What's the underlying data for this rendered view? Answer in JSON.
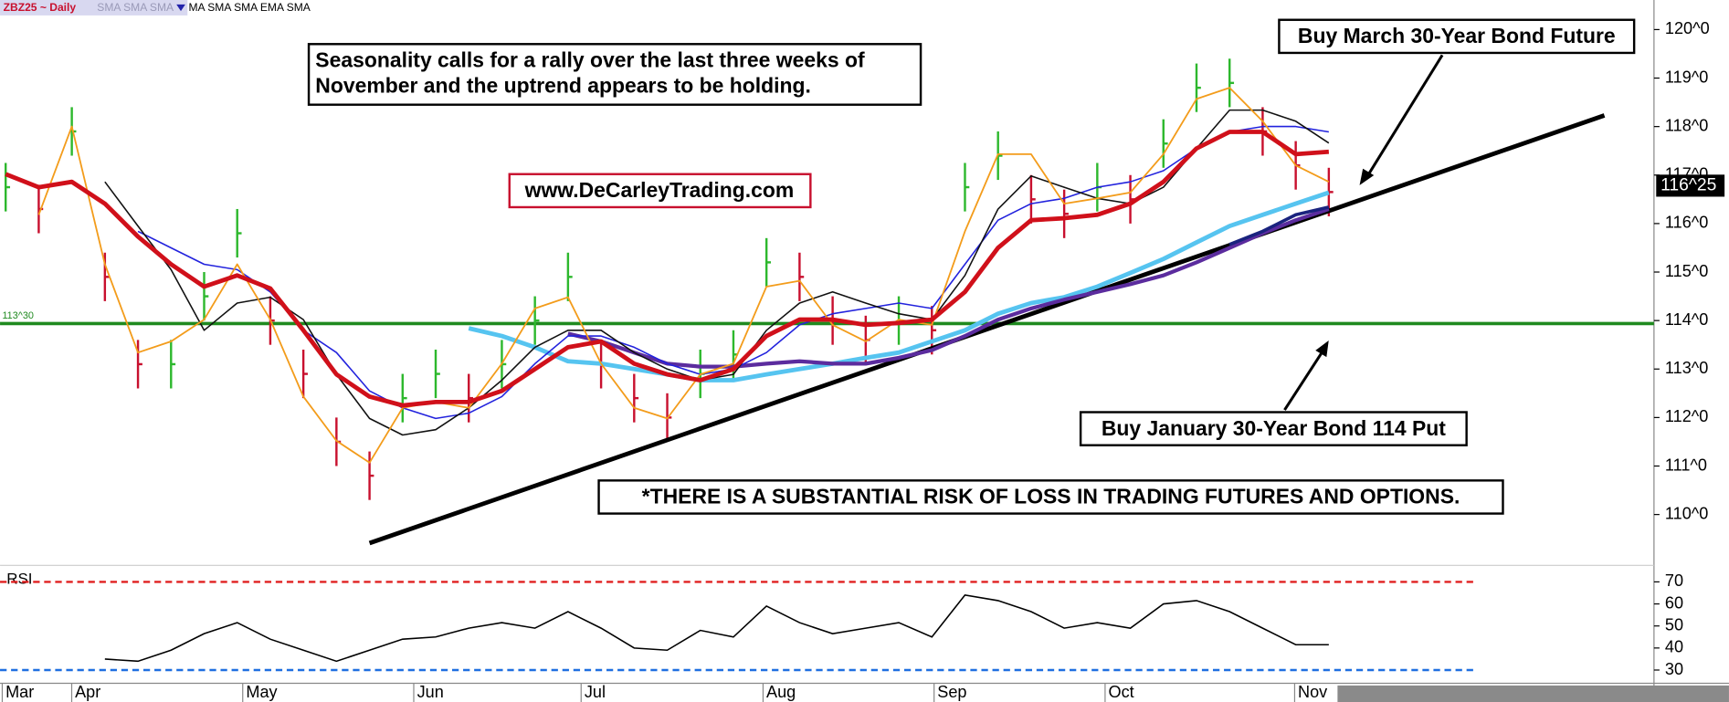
{
  "chart_data": {
    "type": "ohlc",
    "legend_symbol": "ZBZ25 ~ Daily",
    "legend_faded": "SMA SMA SMA",
    "legend_rest": "MA SMA SMA EMA SMA",
    "x": [
      0,
      1,
      2,
      3,
      4,
      5,
      6,
      7,
      8,
      9,
      10,
      11,
      12,
      13,
      14,
      15,
      16,
      17,
      18,
      19,
      20,
      21,
      22,
      23,
      24,
      25,
      26,
      27,
      28,
      29,
      30,
      31,
      32,
      33,
      34,
      35,
      36,
      37,
      38,
      39,
      40
    ],
    "xlim": [
      -0.17,
      49.83
    ],
    "xticks": [
      {
        "value": -0.17,
        "label": "Mar"
      },
      {
        "value": 1.93,
        "label": "Apr"
      },
      {
        "value": 7.1,
        "label": "May"
      },
      {
        "value": 12.27,
        "label": "Jun"
      },
      {
        "value": 17.33,
        "label": "Jul"
      },
      {
        "value": 22.83,
        "label": "Aug"
      },
      {
        "value": 28,
        "label": "Sep"
      },
      {
        "value": 33.17,
        "label": "Oct"
      },
      {
        "value": 38.9,
        "label": "Nov"
      }
    ],
    "ylim": [
      109.02,
      120.61
    ],
    "yticks": [
      {
        "value": 120,
        "label": "120^0"
      },
      {
        "value": 119,
        "label": "119^0"
      },
      {
        "value": 118,
        "label": "118^0"
      },
      {
        "value": 117,
        "label": "117^0"
      },
      {
        "value": 116,
        "label": "116^0"
      },
      {
        "value": 115,
        "label": "115^0"
      },
      {
        "value": 114,
        "label": "114^0"
      },
      {
        "value": 113,
        "label": "113^0"
      },
      {
        "value": 112,
        "label": "112^0"
      },
      {
        "value": 111,
        "label": "111^0"
      },
      {
        "value": 110,
        "label": "110^0"
      }
    ],
    "high": [
      117.25,
      116.8,
      118.4,
      115.4,
      113.6,
      113.6,
      115.0,
      116.3,
      114.5,
      113.4,
      112.0,
      111.3,
      112.9,
      113.4,
      112.9,
      113.6,
      114.5,
      115.4,
      113.6,
      112.9,
      112.5,
      113.4,
      113.8,
      115.7,
      115.4,
      114.5,
      114.1,
      114.5,
      114.3,
      117.25,
      117.9,
      117.0,
      116.7,
      117.25,
      117.0,
      118.15,
      119.3,
      119.4,
      118.4,
      117.7,
      117.15
    ],
    "low": [
      116.25,
      115.8,
      117.4,
      114.4,
      112.6,
      112.6,
      114.0,
      115.3,
      113.5,
      112.4,
      111.0,
      110.3,
      111.9,
      112.4,
      111.9,
      112.6,
      113.5,
      114.4,
      112.6,
      111.9,
      111.5,
      112.4,
      112.8,
      114.7,
      114.4,
      113.5,
      113.1,
      113.5,
      113.3,
      116.25,
      116.9,
      116.0,
      115.7,
      116.25,
      116.0,
      117.15,
      118.3,
      118.4,
      117.4,
      116.7,
      116.15
    ],
    "close": [
      116.75,
      116.3,
      117.9,
      114.9,
      113.1,
      113.1,
      114.5,
      115.8,
      114.0,
      112.9,
      111.5,
      110.8,
      112.4,
      112.9,
      112.4,
      113.1,
      114.0,
      114.9,
      113.1,
      112.4,
      112.0,
      112.9,
      113.3,
      115.2,
      114.9,
      114.0,
      113.6,
      114.0,
      113.8,
      116.75,
      117.4,
      116.5,
      116.2,
      116.75,
      116.5,
      117.65,
      118.8,
      118.9,
      117.9,
      117.2,
      116.65
    ],
    "up_color": "#2db82d",
    "down_color": "#c8102e",
    "series": [
      {
        "color": "#56c4f0",
        "width": 4,
        "values": [
          null,
          null,
          null,
          null,
          null,
          null,
          null,
          null,
          null,
          null,
          null,
          null,
          null,
          null,
          113.84,
          113.68,
          113.45,
          113.16,
          113.11,
          113.0,
          112.89,
          112.77,
          112.77,
          112.89,
          113.0,
          113.11,
          113.23,
          113.34,
          113.57,
          113.8,
          114.14,
          114.36,
          114.48,
          114.7,
          114.98,
          115.27,
          115.61,
          115.95,
          116.18,
          116.41,
          116.64
        ]
      },
      {
        "color": "#5b2c9e",
        "width": 3.5,
        "values": [
          null,
          null,
          null,
          null,
          null,
          null,
          null,
          null,
          null,
          null,
          null,
          null,
          null,
          null,
          null,
          null,
          null,
          113.73,
          113.57,
          113.34,
          113.11,
          113.05,
          113.05,
          113.11,
          113.16,
          113.11,
          113.11,
          113.23,
          113.39,
          113.68,
          114.02,
          114.25,
          114.43,
          114.59,
          114.75,
          114.93,
          115.2,
          115.5,
          115.8,
          116.07,
          116.3
        ]
      },
      {
        "color": "#1a237e",
        "width": 3,
        "values": [
          null,
          null,
          null,
          null,
          null,
          null,
          null,
          null,
          null,
          null,
          null,
          null,
          null,
          null,
          null,
          null,
          null,
          null,
          null,
          null,
          null,
          null,
          null,
          null,
          null,
          null,
          null,
          null,
          null,
          null,
          null,
          null,
          null,
          null,
          null,
          null,
          null,
          115.57,
          115.84,
          116.18,
          116.34
        ]
      },
      {
        "color": "#2222dd",
        "width": 1.3,
        "values": [
          null,
          null,
          null,
          null,
          115.84,
          115.5,
          115.16,
          115.05,
          114.59,
          113.8,
          113.34,
          112.55,
          112.2,
          111.98,
          112.09,
          112.43,
          113.11,
          113.68,
          113.68,
          113.45,
          113.11,
          112.89,
          113.0,
          113.34,
          113.91,
          114.14,
          114.25,
          114.36,
          114.25,
          115.16,
          116.07,
          116.41,
          116.52,
          116.75,
          116.86,
          117.09,
          117.55,
          117.89,
          118.0,
          118.0,
          117.89
        ]
      },
      {
        "color": "#111111",
        "width": 1.3,
        "values": [
          null,
          null,
          null,
          116.86,
          115.95,
          115.05,
          113.8,
          114.36,
          114.48,
          114.02,
          112.89,
          111.98,
          111.64,
          111.75,
          112.2,
          112.77,
          113.45,
          113.8,
          113.8,
          113.34,
          113.0,
          112.77,
          112.89,
          113.8,
          114.36,
          114.59,
          114.36,
          114.14,
          114.02,
          114.93,
          116.3,
          116.98,
          116.75,
          116.52,
          116.41,
          116.75,
          117.55,
          118.34,
          118.34,
          118.11,
          117.66
        ]
      },
      {
        "color": "#f39c1b",
        "width": 1.5,
        "values": [
          null,
          116.18,
          118.0,
          115.16,
          113.34,
          113.57,
          114.02,
          115.16,
          114.02,
          112.43,
          111.52,
          111.07,
          112.2,
          112.32,
          112.2,
          113.11,
          114.25,
          114.48,
          113.11,
          112.2,
          111.98,
          112.89,
          113.11,
          114.7,
          114.82,
          113.91,
          113.57,
          114.02,
          113.91,
          115.84,
          117.43,
          117.43,
          116.41,
          116.52,
          116.64,
          117.43,
          118.57,
          118.8,
          118.11,
          117.2,
          116.86
        ]
      },
      {
        "color": "#d0101a",
        "width": 4,
        "values": [
          117.02,
          116.75,
          116.86,
          116.41,
          115.73,
          115.16,
          114.7,
          114.93,
          114.66,
          113.8,
          112.89,
          112.43,
          112.25,
          112.32,
          112.32,
          112.55,
          113.0,
          113.45,
          113.57,
          113.11,
          112.89,
          112.77,
          113.0,
          113.68,
          114.02,
          114.02,
          113.91,
          113.95,
          114.02,
          114.59,
          115.5,
          116.07,
          116.11,
          116.18,
          116.41,
          116.86,
          117.55,
          117.89,
          117.89,
          117.43,
          117.48
        ]
      }
    ],
    "hline": {
      "value": 113.9375,
      "label": "113^30",
      "color": "#1f8a1f"
    },
    "trendline": {
      "x": [
        11,
        48.33
      ],
      "values": [
        109.41,
        118.23
      ],
      "color": "#000000"
    },
    "last_price": {
      "value": 116.78125,
      "label": "116^25"
    },
    "annotations": {
      "seasonality": [
        "Seasonality calls for a rally over the last three weeks of",
        "November and the uptrend appears to be holding."
      ],
      "website": "www.DeCarleyTrading.com",
      "buy_future": "Buy March 30-Year Bond Future",
      "buy_put": "Buy January 30-Year Bond 114 Put",
      "risk": "*THERE IS A SUBSTANTIAL RISK OF LOSS IN TRADING FUTURES AND OPTIONS."
    },
    "rsi": {
      "label": "RSI",
      "ylim": [
        24,
        76.5
      ],
      "yticks": [
        70,
        60,
        50,
        40,
        30
      ],
      "levels": [
        {
          "value": 70,
          "color": "#e02020"
        },
        {
          "value": 30,
          "color": "#1f6fe0"
        }
      ],
      "color": "#000000",
      "values": [
        null,
        null,
        null,
        35,
        34,
        39,
        46.5,
        51.5,
        44,
        39,
        34,
        39,
        44,
        45,
        49,
        51.5,
        49,
        56.5,
        49,
        40,
        39,
        48,
        45,
        59,
        51.5,
        46.5,
        49,
        51.5,
        45,
        64,
        61.5,
        56.5,
        49,
        51.5,
        49,
        60,
        61.5,
        56.5,
        49,
        41.5,
        41.5
      ]
    }
  }
}
